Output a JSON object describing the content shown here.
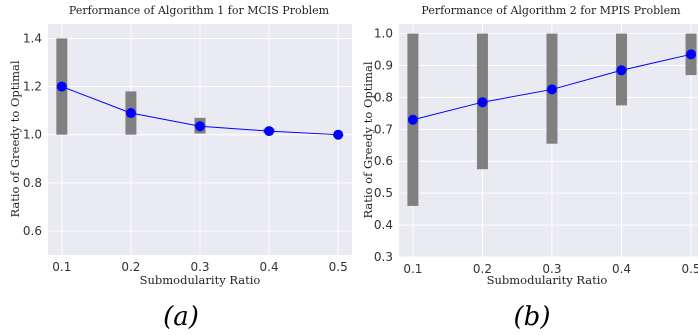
{
  "chart_data": [
    {
      "type": "line",
      "caption": "(a)",
      "title": "Performance of Algorithm 1 for MCIS Problem",
      "xlabel": "Submodularity Ratio",
      "ylabel": "Ratio of Greedy to Optimal",
      "x": [
        0.1,
        0.2,
        0.3,
        0.4,
        0.5
      ],
      "xticks": [
        "0.1",
        "0.2",
        "0.3",
        "0.4",
        "0.5"
      ],
      "yticks": [
        "0.6",
        "0.8",
        "1.0",
        "1.2",
        "1.4"
      ],
      "xlim": [
        0.08,
        0.52
      ],
      "ylim": [
        0.5,
        1.46
      ],
      "grid": true,
      "series": [
        {
          "values": [
            1.2,
            1.09,
            1.035,
            1.015,
            1.0
          ],
          "color": "#0000ff",
          "range_low": [
            1.0,
            1.0,
            1.005,
            1.008,
            1.0
          ],
          "range_high": [
            1.4,
            1.18,
            1.07,
            1.025,
            1.0
          ],
          "range_color": "#808080"
        }
      ]
    },
    {
      "type": "line",
      "caption": "(b)",
      "title": "Performance of Algorithm 2 for MPIS Problem",
      "xlabel": "Submodularity Ratio",
      "ylabel": "Ratio of Greedy to Optimal",
      "x": [
        0.1,
        0.2,
        0.3,
        0.4,
        0.5
      ],
      "xticks": [
        "0.1",
        "0.2",
        "0.3",
        "0.4",
        "0.5"
      ],
      "yticks": [
        "0.3",
        "0.4",
        "0.5",
        "0.6",
        "0.7",
        "0.8",
        "0.9",
        "1.0"
      ],
      "xlim": [
        0.08,
        0.51
      ],
      "ylim": [
        0.3,
        1.03
      ],
      "grid": true,
      "series": [
        {
          "values": [
            0.73,
            0.785,
            0.825,
            0.885,
            0.935
          ],
          "color": "#0000ff",
          "range_low": [
            0.46,
            0.575,
            0.655,
            0.775,
            0.87
          ],
          "range_high": [
            1.0,
            1.0,
            1.0,
            1.0,
            1.0
          ],
          "range_color": "#808080"
        }
      ]
    }
  ]
}
